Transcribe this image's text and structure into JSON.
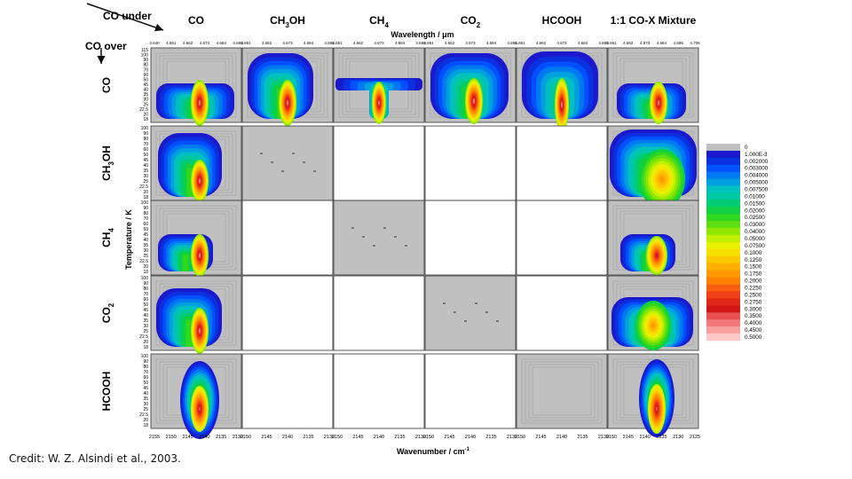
{
  "figure": {
    "corner_top": "CO under",
    "corner_left": "CO over",
    "col_headers": [
      {
        "main": "CO",
        "sub": "",
        "tail": ""
      },
      {
        "main": "CH",
        "sub": "3",
        "tail": "OH"
      },
      {
        "main": "CH",
        "sub": "4",
        "tail": ""
      },
      {
        "main": "CO",
        "sub": "2",
        "tail": ""
      },
      {
        "main": "HCOOH",
        "sub": "",
        "tail": ""
      },
      {
        "main": "1:1 CO-X Mixture",
        "sub": "",
        "tail": ""
      }
    ],
    "row_headers": [
      {
        "main": "CO",
        "sub": "",
        "tail": ""
      },
      {
        "main": "CH",
        "sub": "3",
        "tail": "OH"
      },
      {
        "main": "CH",
        "sub": "4",
        "tail": ""
      },
      {
        "main": "CO",
        "sub": "2",
        "tail": ""
      },
      {
        "main": "HCOOH",
        "sub": "",
        "tail": ""
      }
    ],
    "top_axis_title": "Wavelength / μm",
    "bottom_axis_title": "Wavenumber / cm",
    "bottom_axis_title_sup": "-1",
    "left_axis_title": "Temperature / K",
    "wavelength_ticks": [
      [
        "4.640",
        "4.651",
        "4.662",
        "4.673",
        "4.684",
        "4.695"
      ],
      [
        "4.651",
        "4.662",
        "4.673",
        "4.684",
        "4.695"
      ],
      [
        "4.651",
        "4.662",
        "4.673",
        "4.684",
        "4.695"
      ],
      [
        "4.651",
        "4.662",
        "4.673",
        "4.684",
        "4.695"
      ],
      [
        "4.651",
        "4.662",
        "4.673",
        "4.684",
        "4.695"
      ],
      [
        "4.651",
        "4.662",
        "4.673",
        "4.684",
        "4.695",
        "4.706"
      ]
    ],
    "wavenumber_ticks": [
      [
        "2155",
        "2150",
        "2145",
        "2140",
        "2135",
        "2130"
      ],
      [
        "2150",
        "2145",
        "2140",
        "2135",
        "2130"
      ],
      [
        "2150",
        "2145",
        "2140",
        "2135",
        "2130"
      ],
      [
        "2150",
        "2145",
        "2140",
        "2135",
        "2130"
      ],
      [
        "2150",
        "2145",
        "2140",
        "2135",
        "2130"
      ],
      [
        "2150",
        "2145",
        "2140",
        "2135",
        "2130",
        "2125"
      ]
    ],
    "temperature_ticks": [
      "115",
      "100",
      "90",
      "80",
      "70",
      "60",
      "50",
      "45",
      "40",
      "35",
      "30",
      "25",
      "22.5",
      "20",
      "18"
    ],
    "temperature_ticks_short": [
      "100",
      "90",
      "80",
      "70",
      "60",
      "50",
      "45",
      "40",
      "35",
      "30",
      "25",
      "22.5",
      "20",
      "18"
    ]
  },
  "chart_data": {
    "type": "heatmap",
    "title": "",
    "xlabel": "Wavenumber / cm-1",
    "x2label": "Wavelength / μm",
    "ylabel": "Temperature / K",
    "rows": [
      "CO",
      "CH3OH",
      "CH4",
      "CO2",
      "HCOOH"
    ],
    "columns": [
      "CO",
      "CH3OH",
      "CH4",
      "CO2",
      "HCOOH",
      "1:1 CO-X Mixture"
    ],
    "active_panels": [
      [
        1,
        1,
        1,
        1,
        1,
        1
      ],
      [
        1,
        0,
        0,
        0,
        0,
        1
      ],
      [
        1,
        0,
        0,
        0,
        0,
        1
      ],
      [
        1,
        0,
        0,
        0,
        0,
        1
      ],
      [
        1,
        0,
        0,
        0,
        1,
        1
      ]
    ],
    "empty_gray_panels": [
      [
        1,
        1
      ],
      [
        2,
        2
      ],
      [
        3,
        3
      ],
      [
        4,
        4
      ]
    ],
    "ylim": [
      18,
      115
    ],
    "xlim": [
      2155,
      2130
    ]
  },
  "colorbar": {
    "labels": [
      "0",
      "1.000E-3",
      "0.002000",
      "0.003000",
      "0.004000",
      "0.005000",
      "0.007500",
      "0.01000",
      "0.01500",
      "0.02000",
      "0.02500",
      "0.03000",
      "0.04000",
      "0.05000",
      "0.07500",
      "0.1000",
      "0.1250",
      "0.1500",
      "0.1750",
      "0.2000",
      "0.2250",
      "0.2500",
      "0.2750",
      "0.3000",
      "0.3500",
      "0.4000",
      "0.4500",
      "0.5000"
    ],
    "colors": [
      "#c0c0c0",
      "#1a1acc",
      "#0a30e0",
      "#0050ff",
      "#0078f0",
      "#00a0e0",
      "#00c0c0",
      "#00c8a0",
      "#00cc70",
      "#10d040",
      "#30d820",
      "#60e010",
      "#90e800",
      "#c0f000",
      "#e8f000",
      "#f8e000",
      "#fcc800",
      "#ffb000",
      "#ff9800",
      "#ff8000",
      "#f86010",
      "#f04018",
      "#e02818",
      "#d01818",
      "#e85050",
      "#f07878",
      "#f8a0a0",
      "#ffc8c8"
    ]
  },
  "credit": "Credit: W. Z. Alsindi et al., 2003."
}
